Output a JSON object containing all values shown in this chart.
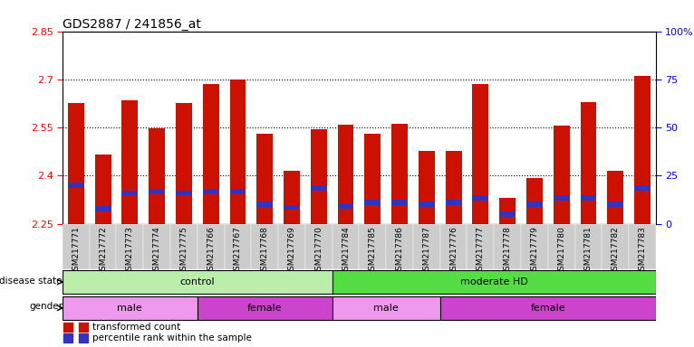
{
  "title": "GDS2887 / 241856_at",
  "samples": [
    "GSM217771",
    "GSM217772",
    "GSM217773",
    "GSM217774",
    "GSM217775",
    "GSM217766",
    "GSM217767",
    "GSM217768",
    "GSM217769",
    "GSM217770",
    "GSM217784",
    "GSM217785",
    "GSM217786",
    "GSM217787",
    "GSM217776",
    "GSM217777",
    "GSM217778",
    "GSM217779",
    "GSM217780",
    "GSM217781",
    "GSM217782",
    "GSM217783"
  ],
  "bar_values": [
    2.625,
    2.465,
    2.635,
    2.548,
    2.625,
    2.685,
    2.7,
    2.53,
    2.415,
    2.545,
    2.558,
    2.53,
    2.562,
    2.478,
    2.478,
    2.685,
    2.332,
    2.393,
    2.555,
    2.628,
    2.416,
    2.71
  ],
  "blue_positions": [
    2.363,
    2.288,
    2.338,
    2.343,
    2.338,
    2.343,
    2.343,
    2.303,
    2.293,
    2.353,
    2.298,
    2.308,
    2.308,
    2.303,
    2.308,
    2.323,
    2.273,
    2.303,
    2.323,
    2.323,
    2.303,
    2.353
  ],
  "blue_heights": [
    0.016,
    0.016,
    0.016,
    0.016,
    0.016,
    0.016,
    0.016,
    0.016,
    0.016,
    0.016,
    0.016,
    0.016,
    0.016,
    0.016,
    0.016,
    0.016,
    0.016,
    0.016,
    0.016,
    0.016,
    0.016,
    0.016
  ],
  "ymin": 2.25,
  "ymax": 2.85,
  "ytick_vals": [
    2.25,
    2.4,
    2.55,
    2.7,
    2.85
  ],
  "ytick_labels": [
    "2.25",
    "2.4",
    "2.55",
    "2.7",
    "2.85"
  ],
  "grid_lines": [
    2.4,
    2.55,
    2.7
  ],
  "right_ytick_vals_pct": [
    0,
    25,
    50,
    75,
    100
  ],
  "right_ytick_labels": [
    "0",
    "25",
    "50",
    "75",
    "100%"
  ],
  "bar_color": "#cc1100",
  "blue_color": "#3333bb",
  "bar_width": 0.6,
  "xtick_area_color": "#cccccc",
  "disease_state_groups": [
    {
      "label": "control",
      "start": 0,
      "end": 10,
      "color": "#bbeeaa"
    },
    {
      "label": "moderate HD",
      "start": 10,
      "end": 22,
      "color": "#55dd44"
    }
  ],
  "gender_groups": [
    {
      "label": "male",
      "start": 0,
      "end": 5,
      "color": "#ee99ee"
    },
    {
      "label": "female",
      "start": 5,
      "end": 10,
      "color": "#cc44cc"
    },
    {
      "label": "male",
      "start": 10,
      "end": 14,
      "color": "#ee99ee"
    },
    {
      "label": "female",
      "start": 14,
      "end": 22,
      "color": "#cc44cc"
    }
  ],
  "legend_red_label": "transformed count",
  "legend_blue_label": "percentile rank within the sample",
  "disease_label": "disease state",
  "gender_label": "gender",
  "figure_bg": "#ffffff"
}
